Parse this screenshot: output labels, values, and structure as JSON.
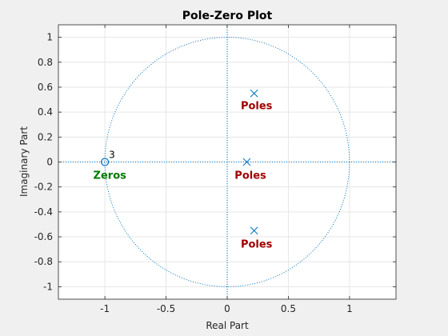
{
  "chart_data": {
    "type": "scatter",
    "title": "Pole-Zero Plot",
    "xlabel": "Real Part",
    "ylabel": "Imaginary Part",
    "xlim": [
      -1.38,
      1.38
    ],
    "ylim": [
      -1.1,
      1.1
    ],
    "xticks": [
      -1,
      -0.5,
      0,
      0.5,
      1
    ],
    "xtick_labels": [
      "-1",
      "-0.5",
      "0",
      "0.5",
      "1"
    ],
    "yticks": [
      1,
      0.8,
      0.6,
      0.4,
      0.2,
      0,
      -0.2,
      -0.4,
      -0.6,
      -0.8,
      -1
    ],
    "ytick_labels": [
      "1",
      "0.8",
      "0.6",
      "0.4",
      "0.2",
      "0",
      "-0.2",
      "-0.4",
      "-0.6",
      "-0.8",
      "-1"
    ],
    "grid": true,
    "unit_circle": true,
    "poles": [
      {
        "re": 0.22,
        "im": 0.55
      },
      {
        "re": 0.16,
        "im": 0.0
      },
      {
        "re": 0.22,
        "im": -0.55
      }
    ],
    "zeros": [
      {
        "re": -1.0,
        "im": 0.0,
        "multiplicity_label": "3"
      }
    ],
    "annotations": [
      {
        "text": "Poles",
        "x": 0.24,
        "y": 0.45,
        "kind": "pole"
      },
      {
        "text": "Poles",
        "x": 0.19,
        "y": -0.11,
        "kind": "pole"
      },
      {
        "text": "Poles",
        "x": 0.24,
        "y": -0.66,
        "kind": "pole"
      },
      {
        "text": "Zeros",
        "x": -0.96,
        "y": -0.11,
        "kind": "zero"
      }
    ],
    "colors": {
      "marker": "#0072bd",
      "pole_text": "#a00000",
      "zero_text": "#007a00",
      "grid": "#e6e6e6",
      "axes_background": "#ffffff",
      "figure_background": "#f0f0f0"
    }
  }
}
